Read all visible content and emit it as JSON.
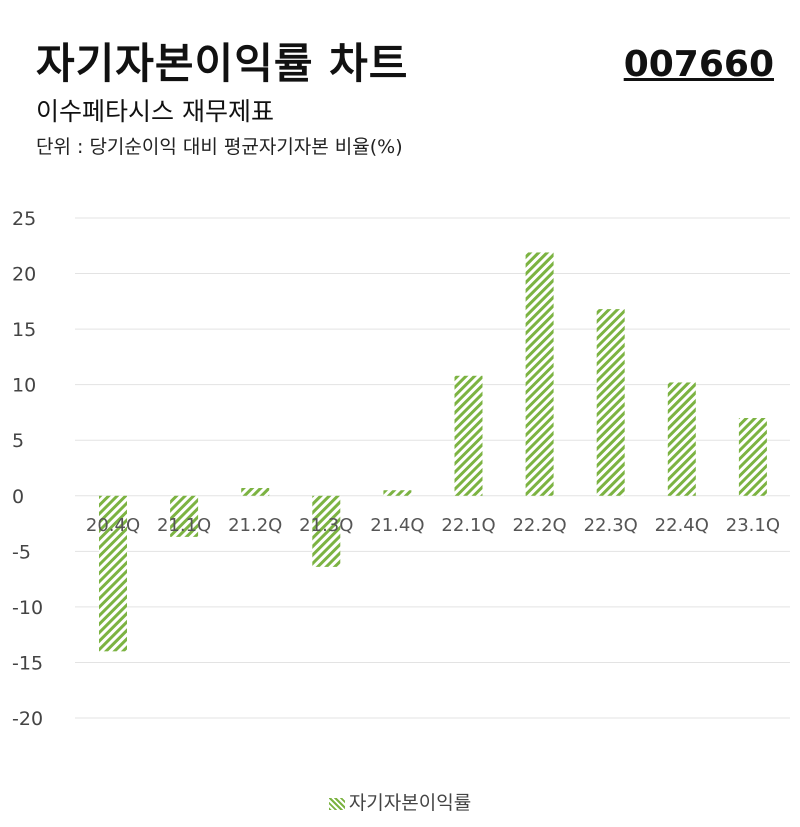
{
  "header": {
    "title": "자기자본이익률 차트",
    "code": "007660",
    "subtitle": "이수페타시스 재무제표",
    "unit": "단위 : 당기순이익 대비 평균자기자본 비율(%)"
  },
  "colors": {
    "bar": "#7cb342",
    "grid": "#e3e3e3",
    "axis_text": "#444444"
  },
  "chart_data": {
    "type": "bar",
    "categories": [
      "20.4Q",
      "21.1Q",
      "21.2Q",
      "21.3Q",
      "21.4Q",
      "22.1Q",
      "22.2Q",
      "22.3Q",
      "22.4Q",
      "23.1Q"
    ],
    "series": [
      {
        "name": "자기자본이익률",
        "values": [
          -14.0,
          -3.7,
          0.7,
          -6.4,
          0.5,
          10.8,
          21.9,
          16.8,
          10.2,
          7.0
        ]
      }
    ],
    "yticks": [
      25,
      20,
      15,
      10,
      5,
      0,
      -5,
      -10,
      -15,
      -20
    ],
    "ylim": [
      -20,
      25
    ],
    "grid": true,
    "legend": "bottom-center",
    "bar_fill": "diagonal-stripes"
  }
}
